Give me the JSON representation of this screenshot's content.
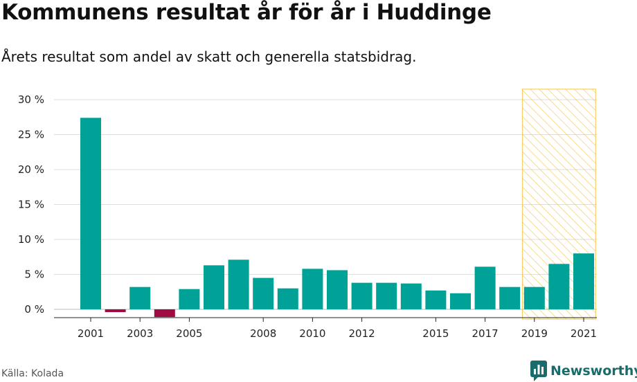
{
  "header": {
    "title": "Kommunens resultat år för år i Huddinge",
    "subtitle": "Årets resultat som andel av skatt och generella statsbidrag."
  },
  "footer": {
    "source": "Källa: Kolada",
    "brand": "Newsworthy"
  },
  "colors": {
    "positive": "#00a298",
    "negative": "#a00b43",
    "highlight": "#f5c342",
    "brand": "#1a6b6b"
  },
  "chart_data": {
    "type": "bar",
    "x": [
      2001,
      2002,
      2003,
      2004,
      2005,
      2006,
      2007,
      2008,
      2009,
      2010,
      2011,
      2012,
      2013,
      2014,
      2015,
      2016,
      2017,
      2018,
      2019,
      2020,
      2021
    ],
    "values": [
      27.4,
      -0.4,
      3.2,
      -1.1,
      2.9,
      6.3,
      7.1,
      4.5,
      3.0,
      5.8,
      5.6,
      3.8,
      3.8,
      3.7,
      2.7,
      2.3,
      6.1,
      3.2,
      3.2,
      6.5,
      8.0
    ],
    "y_ticks": [
      "0 %",
      "5 %",
      "10 %",
      "15 %",
      "20 %",
      "25 %",
      "30 %"
    ],
    "x_tick_labels": [
      "2001",
      "2003",
      "2005",
      "2008",
      "2010",
      "2012",
      "2015",
      "2017",
      "2019",
      "2021"
    ],
    "ylim": [
      -1.2,
      31.5
    ],
    "highlight_range": [
      2019,
      2021
    ],
    "grid": true
  }
}
